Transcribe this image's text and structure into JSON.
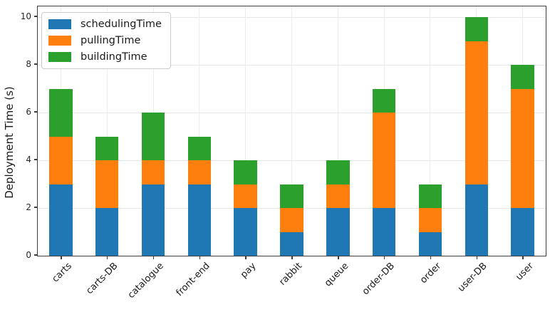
{
  "chart_data": {
    "type": "bar",
    "stacked": true,
    "title": "",
    "xlabel": "",
    "ylabel": "Deployment Time (s)",
    "ylim": [
      0,
      10
    ],
    "yticks": [
      0,
      2,
      4,
      6,
      8,
      10
    ],
    "grid": true,
    "legend_position": "upper left",
    "categories": [
      "carts",
      "carts-DB",
      "catalogue",
      "front-end",
      "pay",
      "rabbit",
      "queue",
      "order-DB",
      "order",
      "user-DB",
      "user"
    ],
    "series": [
      {
        "name": "schedulingTime",
        "color": "#1f77b4",
        "values": [
          3,
          2,
          3,
          3,
          2,
          1,
          2,
          2,
          1,
          3,
          2
        ]
      },
      {
        "name": "pullingTime",
        "color": "#ff7f0e",
        "values": [
          2,
          2,
          1,
          1,
          1,
          1,
          1,
          4,
          1,
          6,
          5
        ]
      },
      {
        "name": "buildingTime",
        "color": "#2ca02c",
        "values": [
          2,
          1,
          2,
          1,
          1,
          1,
          1,
          1,
          1,
          1,
          1
        ]
      }
    ],
    "totals": [
      7,
      5,
      6,
      5,
      4,
      3,
      4,
      7,
      3,
      10,
      8
    ]
  },
  "colors": {
    "grid": "#e7e7e7",
    "spine": "#3d3d3d",
    "text": "#1a1a1a",
    "background": "#ffffff"
  }
}
